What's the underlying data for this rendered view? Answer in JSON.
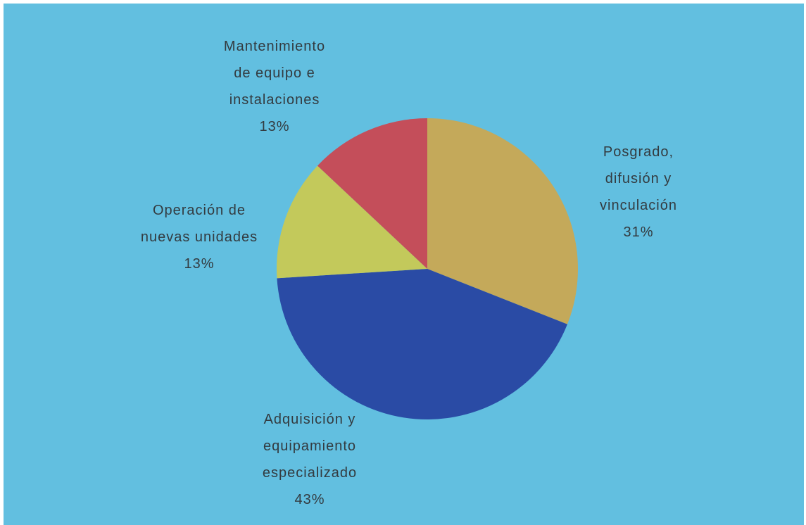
{
  "chart_data": {
    "type": "pie",
    "categories": [
      "Posgrado,\ndifusión y\nvinculación",
      "Adquisición y\nequipamiento\nespecializado",
      "Operación de\nnuevas unidades",
      "Mantenimiento\nde equipo e\ninstalaciones"
    ],
    "values": [
      31,
      43,
      13,
      13
    ],
    "value_labels": [
      "31%",
      "43%",
      "13%",
      "13%"
    ],
    "colors": [
      "#c4a95a",
      "#2a4ba5",
      "#c3c95b",
      "#c44e5a"
    ]
  }
}
